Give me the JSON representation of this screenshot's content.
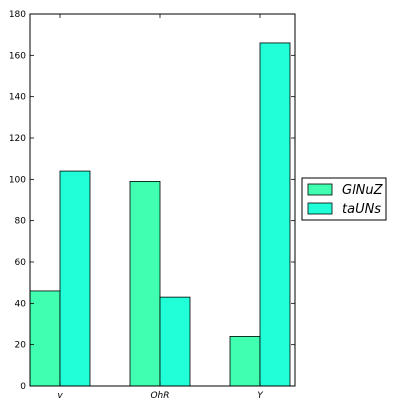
{
  "chart_data": {
    "type": "bar",
    "categories": [
      "v",
      "OhR",
      "Y"
    ],
    "series": [
      {
        "name": "GlNuZ",
        "values": [
          46,
          99,
          24
        ],
        "color": "#40ffb0"
      },
      {
        "name": "taUNs",
        "values": [
          104,
          43,
          166
        ],
        "color": "#20ffd8"
      }
    ],
    "ylim": [
      0,
      180
    ],
    "yticks": [
      0,
      20,
      40,
      60,
      80,
      100,
      120,
      140,
      160,
      180
    ],
    "title": "",
    "xlabel": "",
    "ylabel": "",
    "grid": false,
    "legend_position": "center-right outside"
  }
}
